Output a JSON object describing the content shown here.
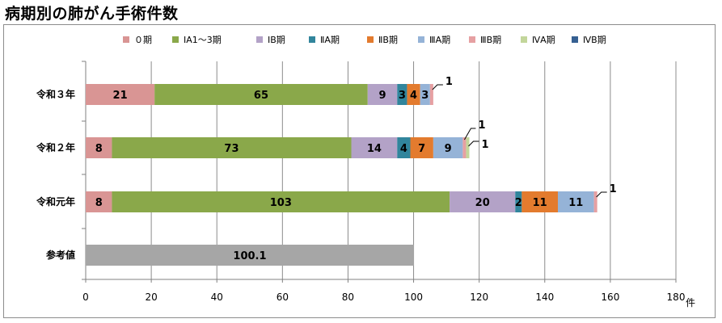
{
  "page": {
    "title": "病期別の肺がん手術件数"
  },
  "chart_data": {
    "type": "bar",
    "orientation": "horizontal",
    "stacked": true,
    "title": "病期別の肺がん手術件数",
    "x_unit": "件",
    "xlim": [
      0,
      180
    ],
    "x_ticks": [
      0,
      20,
      40,
      60,
      80,
      100,
      120,
      140,
      160,
      180
    ],
    "grid": true,
    "legend_position": "top",
    "categories": [
      "令和３年",
      "令和２年",
      "令和元年",
      "参考値"
    ],
    "series": [
      {
        "name": "０期",
        "color": "#d99594",
        "values": [
          21,
          8,
          8,
          null
        ]
      },
      {
        "name": "ⅠA1～3期",
        "color": "#8aa84a",
        "values": [
          65,
          73,
          103,
          null
        ]
      },
      {
        "name": "ⅠB期",
        "color": "#b3a2c7",
        "values": [
          9,
          14,
          20,
          null
        ]
      },
      {
        "name": "ⅡA期",
        "color": "#31859c",
        "values": [
          3,
          4,
          2,
          null
        ]
      },
      {
        "name": "ⅡB期",
        "color": "#e37b2e",
        "values": [
          4,
          7,
          11,
          null
        ]
      },
      {
        "name": "ⅢA期",
        "color": "#95b3d7",
        "values": [
          3,
          9,
          11,
          null
        ]
      },
      {
        "name": "ⅢB期",
        "color": "#e6a0a2",
        "values": [
          1,
          1,
          1,
          null
        ]
      },
      {
        "name": "ⅣA期",
        "color": "#c3d69b",
        "values": [
          0,
          1,
          0,
          null
        ]
      },
      {
        "name": "ⅣB期",
        "color": "#366092",
        "values": [
          0,
          0,
          0,
          null
        ]
      }
    ],
    "reference": {
      "category": "参考値",
      "value": 100.1,
      "label": "100.1",
      "color": "#a6a6a6"
    }
  }
}
